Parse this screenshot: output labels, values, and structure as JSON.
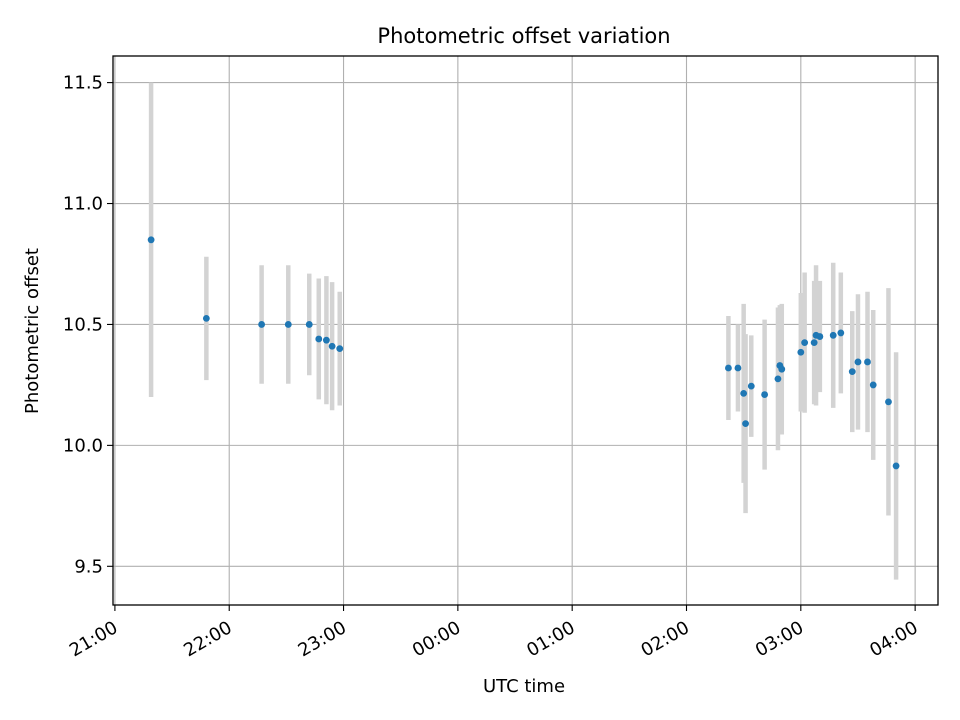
{
  "chart_data": {
    "type": "scatter",
    "title": "Photometric offset variation",
    "xlabel": "UTC time",
    "ylabel": "Photometric offset",
    "x_is_time": true,
    "x_ticks": [
      "21:00",
      "22:00",
      "23:00",
      "00:00",
      "01:00",
      "02:00",
      "03:00",
      "04:00"
    ],
    "xlim": [
      "20:59",
      "04:12"
    ],
    "ylim": [
      9.34,
      11.61
    ],
    "y_ticks": [
      9.5,
      10.0,
      10.5,
      11.0,
      11.5
    ],
    "grid": true,
    "errorbar_color": "#d3d3d3",
    "marker_color": "#1f77b4",
    "points": [
      {
        "x": "21:19",
        "y": 10.85,
        "yerr": 0.65
      },
      {
        "x": "21:48",
        "y": 10.525,
        "yerr": 0.255
      },
      {
        "x": "22:17",
        "y": 10.5,
        "yerr": 0.245
      },
      {
        "x": "22:31",
        "y": 10.5,
        "yerr": 0.245
      },
      {
        "x": "22:42",
        "y": 10.5,
        "yerr": 0.21
      },
      {
        "x": "22:47",
        "y": 10.44,
        "yerr": 0.25
      },
      {
        "x": "22:51",
        "y": 10.435,
        "yerr": 0.265
      },
      {
        "x": "22:54",
        "y": 10.41,
        "yerr": 0.265
      },
      {
        "x": "22:58",
        "y": 10.4,
        "yerr": 0.235
      },
      {
        "x": "02:22",
        "y": 10.32,
        "yerr": 0.215
      },
      {
        "x": "02:27",
        "y": 10.32,
        "yerr": 0.18
      },
      {
        "x": "02:30",
        "y": 10.215,
        "yerr": 0.37
      },
      {
        "x": "02:31",
        "y": 10.09,
        "yerr": 0.37
      },
      {
        "x": "02:34",
        "y": 10.245,
        "yerr": 0.21
      },
      {
        "x": "02:41",
        "y": 10.21,
        "yerr": 0.31
      },
      {
        "x": "02:48",
        "y": 10.275,
        "yerr": 0.295
      },
      {
        "x": "02:49",
        "y": 10.33,
        "yerr": 0.25
      },
      {
        "x": "02:50",
        "y": 10.315,
        "yerr": 0.27
      },
      {
        "x": "03:00",
        "y": 10.385,
        "yerr": 0.245
      },
      {
        "x": "03:02",
        "y": 10.425,
        "yerr": 0.29
      },
      {
        "x": "03:07",
        "y": 10.425,
        "yerr": 0.255
      },
      {
        "x": "03:08",
        "y": 10.455,
        "yerr": 0.29
      },
      {
        "x": "03:10",
        "y": 10.45,
        "yerr": 0.23
      },
      {
        "x": "03:17",
        "y": 10.455,
        "yerr": 0.3
      },
      {
        "x": "03:21",
        "y": 10.465,
        "yerr": 0.25
      },
      {
        "x": "03:27",
        "y": 10.305,
        "yerr": 0.25
      },
      {
        "x": "03:30",
        "y": 10.345,
        "yerr": 0.28
      },
      {
        "x": "03:35",
        "y": 10.345,
        "yerr": 0.29
      },
      {
        "x": "03:38",
        "y": 10.25,
        "yerr": 0.31
      },
      {
        "x": "03:46",
        "y": 10.18,
        "yerr": 0.47
      },
      {
        "x": "03:50",
        "y": 9.915,
        "yerr": 0.47
      }
    ]
  }
}
